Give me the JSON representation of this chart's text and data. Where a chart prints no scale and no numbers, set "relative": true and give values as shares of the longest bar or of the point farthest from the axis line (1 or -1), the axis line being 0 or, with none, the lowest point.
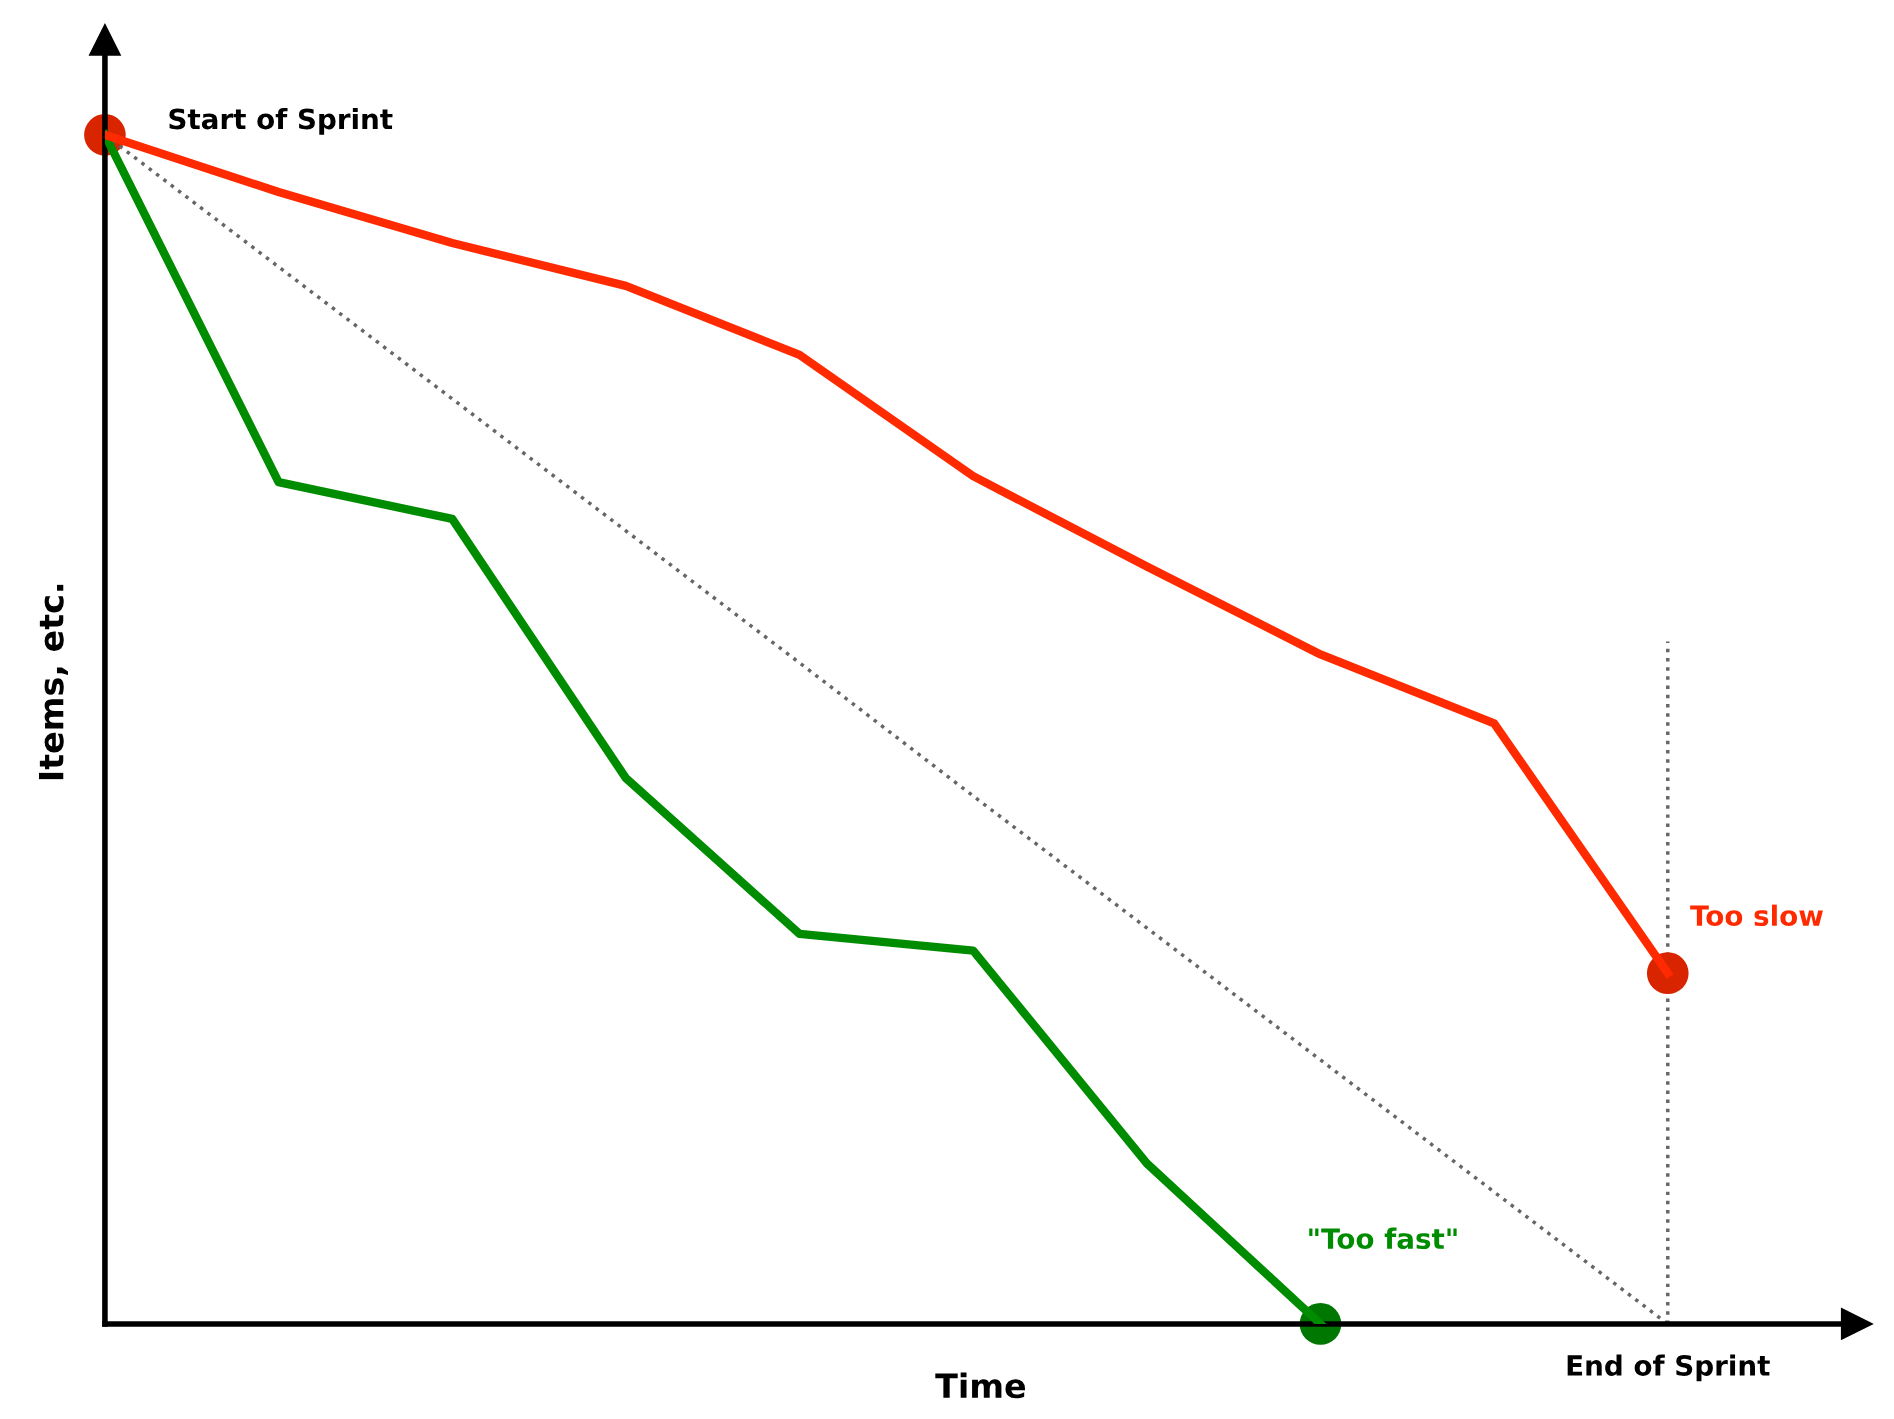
{
  "chart_data": {
    "type": "line",
    "relative": true,
    "xlabel": "Time",
    "ylabel": "Items, etc.",
    "categories": [
      null,
      null,
      null,
      null,
      null,
      null,
      null,
      null,
      null,
      null
    ],
    "series": [
      {
        "name": "Too slow",
        "color": "#ff2a00",
        "values": [
          1,
          0.952,
          0.909,
          0.873,
          0.815,
          0.713,
          0.637,
          0.563,
          0.505,
          0.295
        ]
      },
      {
        "name": "\"Too fast\"",
        "color": "#008c00",
        "values": [
          1,
          0.708,
          0.677,
          0.459,
          0.328,
          0.314,
          0.135,
          0,
          null,
          null
        ]
      },
      {
        "color": "#666666",
        "line_style": "dotted",
        "values": [
          1,
          0.889,
          0.778,
          0.667,
          0.556,
          0.444,
          0.333,
          0.222,
          0.111,
          0
        ]
      }
    ],
    "annotations": [
      "Start of Sprint",
      "End of Sprint"
    ],
    "legend": false
  }
}
